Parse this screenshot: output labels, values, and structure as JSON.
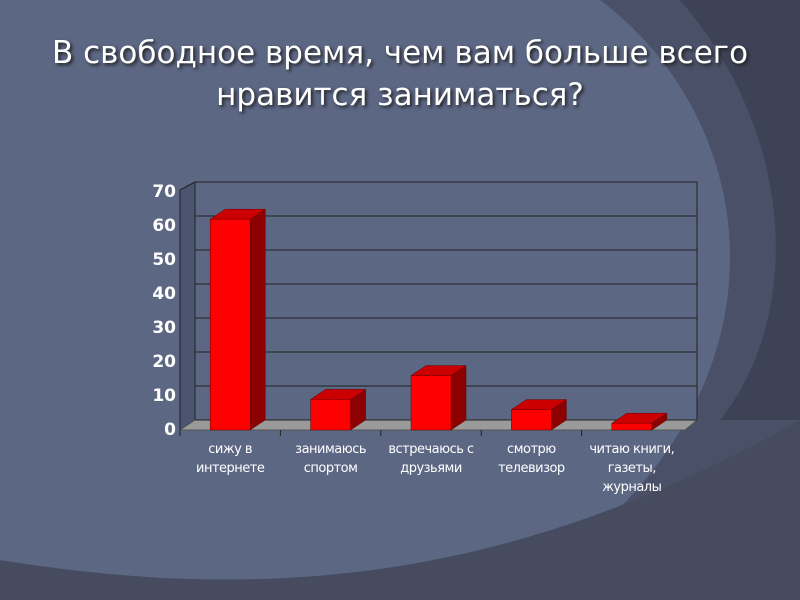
{
  "chart_data": {
    "type": "bar",
    "title": "В свободное время, чем вам больше всего нравится заниматься?",
    "categories": [
      "сижу в интернете",
      "занимаюсь спортом",
      "встречаюсь с друзьями",
      "смотрю телевизор",
      "читаю книги, газеты, журналы"
    ],
    "values": [
      62,
      9,
      16,
      6,
      2
    ],
    "color": "#ff0000",
    "ylim": [
      0,
      70
    ],
    "yticks": [
      0,
      10,
      20,
      30,
      40,
      50,
      60,
      70
    ],
    "grid": true
  }
}
